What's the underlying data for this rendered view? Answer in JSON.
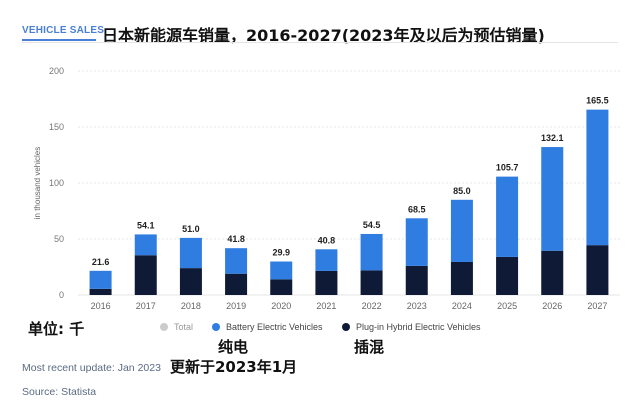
{
  "header": {
    "tag": "VEHICLE SALES",
    "title": "日本新能源车销量，2016-2027(2023年及以后为预估销量)"
  },
  "annotations": {
    "unit": "单位: 千",
    "bev": "纯电",
    "phev": "插混",
    "update_cn": "更新于2023年1月"
  },
  "footer": {
    "update": "Most recent update: Jan 2023",
    "source": "Source: Statista"
  },
  "colors": {
    "bev": "#2f7de1",
    "phev": "#0e1a36",
    "total": "#cccccc",
    "grid": "#e6e6e6"
  },
  "chart_data": {
    "type": "bar",
    "stacked": true,
    "ylabel": "in thousand vehicles",
    "ylim": [
      0,
      200
    ],
    "yticks": [
      0,
      50,
      100,
      150,
      200
    ],
    "categories": [
      "2016",
      "2017",
      "2018",
      "2019",
      "2020",
      "2021",
      "2022",
      "2023",
      "2024",
      "2025",
      "2026",
      "2027"
    ],
    "series": [
      {
        "name": "Plug-in Hybrid Electric Vehicles",
        "values": [
          5.5,
          35.5,
          24,
          19,
          14,
          21.5,
          22,
          26,
          29.5,
          34,
          39.5,
          44.5
        ]
      },
      {
        "name": "Battery Electric Vehicles",
        "values": [
          16.1,
          18.6,
          27,
          22.8,
          15.9,
          19.3,
          32.5,
          42.5,
          55.5,
          71.7,
          92.6,
          121
        ]
      }
    ],
    "totals": [
      21.6,
      54.1,
      51,
      41.8,
      29.9,
      40.8,
      54.5,
      68.5,
      85,
      105.7,
      132.1,
      165.5
    ],
    "total_labels": [
      "21.6",
      "54.1",
      "51.0",
      "41.8",
      "29.9",
      "40.8",
      "54.5",
      "68.5",
      "85.0",
      "105.7",
      "132.1",
      "165.5"
    ],
    "legend": [
      {
        "label": "Total",
        "key": "total"
      },
      {
        "label": "Battery Electric Vehicles",
        "key": "bev"
      },
      {
        "label": "Plug-in Hybrid Electric Vehicles",
        "key": "phev"
      }
    ]
  }
}
